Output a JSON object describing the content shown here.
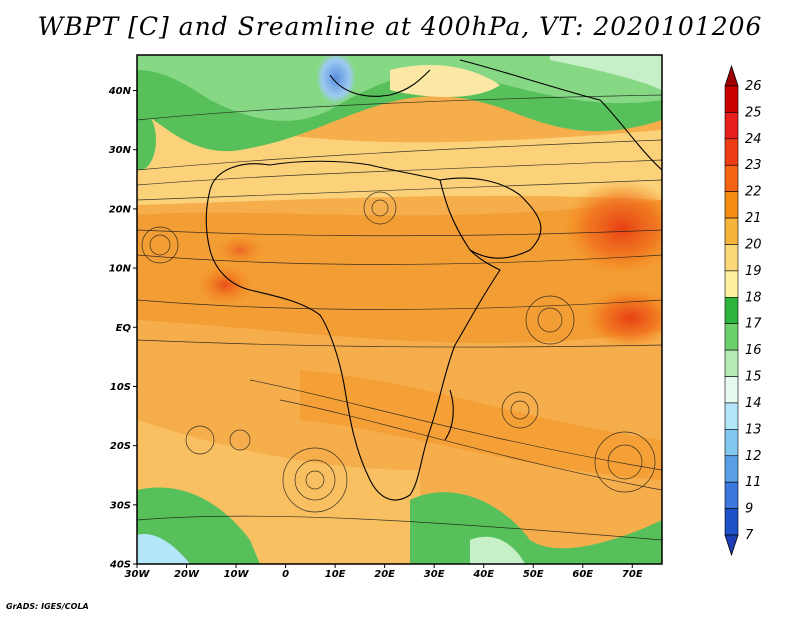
{
  "title": "WBPT [C] and Sreamline at 400hPa, VT: 2020101206",
  "credit": "GrADS: IGES/COLA",
  "map": {
    "lon_range": [
      -30,
      76
    ],
    "lat_range": [
      -40,
      46
    ],
    "lat_ticks": [
      {
        "value": 40,
        "label": "40N"
      },
      {
        "value": 30,
        "label": "30N"
      },
      {
        "value": 20,
        "label": "20N"
      },
      {
        "value": 10,
        "label": "10N"
      },
      {
        "value": 0,
        "label": "EQ"
      },
      {
        "value": -10,
        "label": "10S"
      },
      {
        "value": -20,
        "label": "20S"
      },
      {
        "value": -30,
        "label": "30S"
      },
      {
        "value": -40,
        "label": "40S"
      }
    ],
    "lon_ticks": [
      {
        "value": -30,
        "label": "30W"
      },
      {
        "value": -20,
        "label": "20W"
      },
      {
        "value": -10,
        "label": "10W"
      },
      {
        "value": 0,
        "label": "0"
      },
      {
        "value": 10,
        "label": "10E"
      },
      {
        "value": 20,
        "label": "20E"
      },
      {
        "value": 30,
        "label": "30E"
      },
      {
        "value": 40,
        "label": "40E"
      },
      {
        "value": 50,
        "label": "50E"
      },
      {
        "value": 60,
        "label": "60E"
      },
      {
        "value": 70,
        "label": "70E"
      }
    ]
  },
  "colorbar": {
    "labels": [
      "26",
      "25",
      "24",
      "23",
      "22",
      "21",
      "20",
      "19",
      "18",
      "17",
      "16",
      "15",
      "14",
      "13",
      "12",
      "11",
      "9",
      "7"
    ],
    "colors": [
      "#a00000",
      "#c80000",
      "#e61e1e",
      "#f03c14",
      "#f46414",
      "#f58c14",
      "#f7b43c",
      "#fad778",
      "#fff0a0",
      "#2db43c",
      "#6cd06c",
      "#b4ecb4",
      "#e6faf0",
      "#b4e6fa",
      "#82c8f0",
      "#5aa0e6",
      "#3c78dc",
      "#1e50c8",
      "#1e3cb4"
    ]
  }
}
